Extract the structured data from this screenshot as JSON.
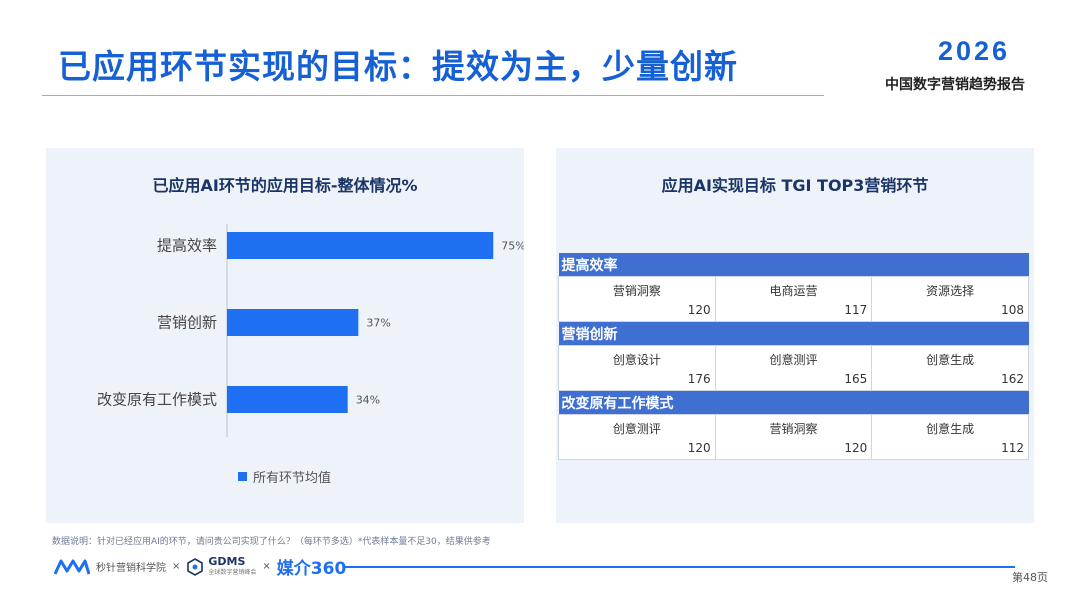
{
  "header": {
    "title": "已应用环节实现的目标：提效为主，少量创新",
    "brand_year": "2026",
    "brand_subtitle": "中国数字营销趋势报告"
  },
  "left_panel": {
    "title": "已应用AI环节的应用目标-整体情况%",
    "legend": "所有环节均值"
  },
  "chart_data": {
    "type": "bar",
    "orientation": "horizontal",
    "title": "已应用AI环节的应用目标-整体情况%",
    "categories": [
      "提高效率",
      "营销创新",
      "改变原有工作模式"
    ],
    "series": [
      {
        "name": "所有环节均值",
        "values": [
          75,
          37,
          34
        ]
      }
    ],
    "data_labels": [
      "75%",
      "37%",
      "34%"
    ],
    "xlim": [
      0,
      100
    ],
    "grid": false,
    "legend_position": "bottom",
    "bar_color": "#1f6ff2"
  },
  "right_panel": {
    "title": "应用AI实现目标 TGI TOP3营销环节",
    "sections": [
      {
        "name": "提高效率",
        "items": [
          {
            "label": "营销洞察",
            "value": "120"
          },
          {
            "label": "电商运营",
            "value": "117"
          },
          {
            "label": "资源选择",
            "value": "108"
          }
        ]
      },
      {
        "name": "营销创新",
        "items": [
          {
            "label": "创意设计",
            "value": "176"
          },
          {
            "label": "创意测评",
            "value": "165"
          },
          {
            "label": "创意生成",
            "value": "162"
          }
        ]
      },
      {
        "name": "改变原有工作模式",
        "items": [
          {
            "label": "创意测评",
            "value": "120"
          },
          {
            "label": "营销洞察",
            "value": "120"
          },
          {
            "label": "创意生成",
            "value": "112"
          }
        ]
      }
    ]
  },
  "footer": {
    "note": "数据说明：针对已经应用AI的环节，请问贵公司实现了什么？（每环节多选）*代表样本量不足30，结果供参考",
    "logo1": "秒针营销科学院",
    "times": "×",
    "logo2": "GDMS",
    "logo2_sub": "全球数字营销峰会",
    "logo3": "媒介360",
    "page": "第48页"
  }
}
